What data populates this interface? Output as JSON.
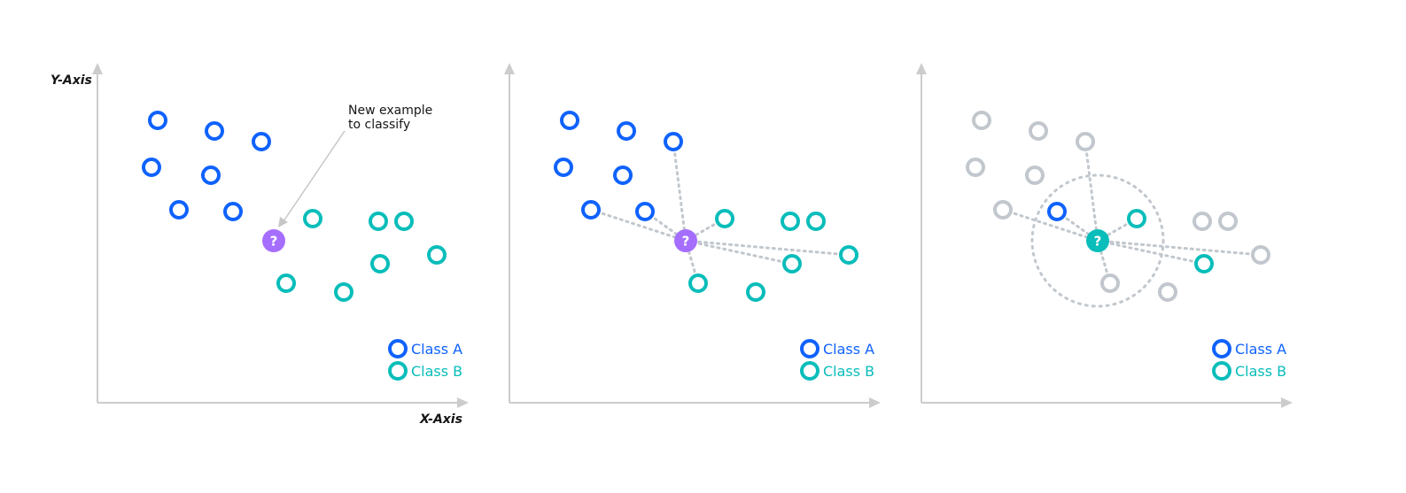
{
  "axes": {
    "y_label": "Y-Axis",
    "x_label": "X-Axis"
  },
  "annotation": {
    "line1": "New example",
    "line2": "to classify"
  },
  "legend": {
    "class_a": "Class A",
    "class_b": "Class B"
  },
  "query_symbol": "?",
  "colors": {
    "class_a": "#0f62fe",
    "class_b": "#08bdba",
    "query_new": "#a56eff",
    "neutral": "#c1c7cd",
    "axis": "#cccccc"
  },
  "panels": [
    {
      "name": "panel-1",
      "query_color": "query_new",
      "points": [
        {
          "c": "A"
        },
        {
          "c": "A"
        },
        {
          "c": "A"
        },
        {
          "c": "A"
        },
        {
          "c": "A"
        },
        {
          "c": "A"
        },
        {
          "c": "A"
        },
        {
          "c": "B"
        },
        {
          "c": "B"
        },
        {
          "c": "B"
        },
        {
          "c": "B"
        },
        {
          "c": "B"
        },
        {
          "c": "B"
        },
        {
          "c": "B"
        }
      ]
    },
    {
      "name": "panel-2",
      "query_color": "query_new",
      "points": [
        {
          "c": "A"
        },
        {
          "c": "A"
        },
        {
          "c": "A",
          "link": true
        },
        {
          "c": "A"
        },
        {
          "c": "A"
        },
        {
          "c": "A",
          "link": true
        },
        {
          "c": "A",
          "link": true
        },
        {
          "c": "B",
          "link": true
        },
        {
          "c": "B"
        },
        {
          "c": "B"
        },
        {
          "c": "B",
          "link": true
        },
        {
          "c": "B"
        },
        {
          "c": "B",
          "link": true
        },
        {
          "c": "B",
          "link": true
        }
      ]
    },
    {
      "name": "panel-3",
      "query_color": "class_b",
      "radius_circle": true,
      "points": [
        {
          "c": "N"
        },
        {
          "c": "N"
        },
        {
          "c": "N",
          "link": true
        },
        {
          "c": "N"
        },
        {
          "c": "N"
        },
        {
          "c": "N",
          "link": true
        },
        {
          "c": "A",
          "link": true
        },
        {
          "c": "B",
          "link": true
        },
        {
          "c": "N"
        },
        {
          "c": "N"
        },
        {
          "c": "N",
          "link": true
        },
        {
          "c": "N"
        },
        {
          "c": "B",
          "link": true
        },
        {
          "c": "N",
          "link": true
        }
      ]
    }
  ]
}
